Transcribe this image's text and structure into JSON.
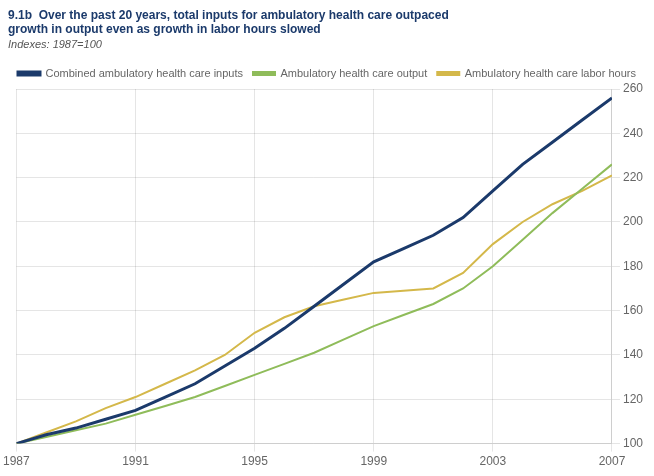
{
  "chart_data": {
    "type": "line",
    "title": [
      "9.1b  Over the past 20 years, total inputs for ambulatory health care outpaced",
      "growth in output even as growth in labor hours slowed"
    ],
    "subtitle": "Indexes: 1987=100",
    "x": [
      1987,
      1988,
      1989,
      1990,
      1991,
      1992,
      1993,
      1994,
      1995,
      1996,
      1997,
      1998,
      1999,
      2000,
      2001,
      2002,
      2003,
      2004,
      2005,
      2006,
      2007
    ],
    "series": [
      {
        "name": "Combined ambulatory health care inputs",
        "color": "#1b3a6b",
        "values": [
          100,
          104,
          107,
          111,
          115,
          121,
          127,
          135,
          143,
          152,
          162,
          172,
          182,
          188,
          194,
          202,
          214,
          226,
          236,
          246,
          256
        ]
      },
      {
        "name": "Ambulatory health care output",
        "color": "#8fbc5a",
        "values": [
          100,
          103,
          106,
          109,
          113,
          117,
          121,
          126,
          131,
          136,
          141,
          147,
          153,
          158,
          163,
          170,
          180,
          192,
          204,
          215,
          226
        ]
      },
      {
        "name": "Ambulatory health care labor hours",
        "color": "#d4b84a",
        "values": [
          100,
          105,
          110,
          116,
          121,
          127,
          133,
          140,
          150,
          157,
          162,
          165,
          168,
          169,
          170,
          177,
          190,
          200,
          208,
          214,
          221
        ]
      }
    ],
    "xlim": [
      1987,
      2007
    ],
    "xticks": [
      1987,
      1991,
      1995,
      1999,
      2003,
      2007
    ],
    "ylim": [
      100,
      260
    ],
    "yticks": [
      100,
      120,
      140,
      160,
      180,
      200,
      220,
      240,
      260
    ],
    "grid": true,
    "legend": "upper left"
  }
}
